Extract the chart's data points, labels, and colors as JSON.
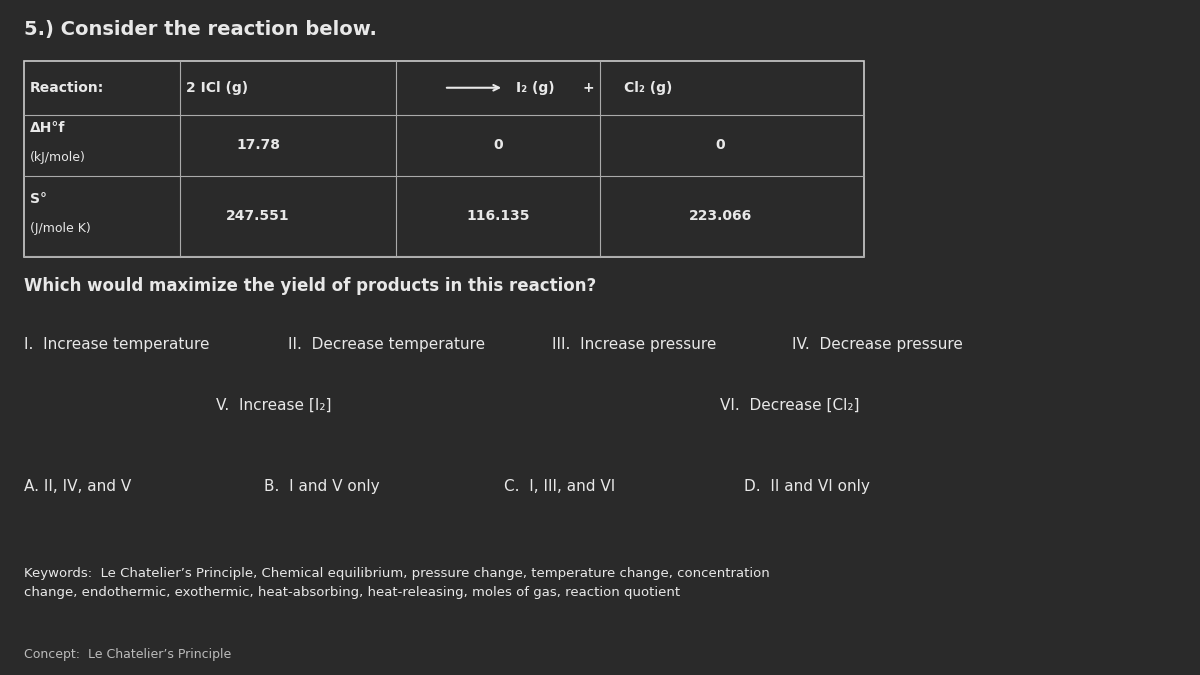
{
  "background_color": "#2a2a2a",
  "text_color": "#e8e8e8",
  "panel_color": "#3a3a3a",
  "title": "5.) Consider the reaction below.",
  "question": "Which would maximize the yield of products in this reaction?",
  "table": {
    "col_labels": [
      "Reaction:",
      "2 ICl (g)",
      "→",
      "I₂ (g)",
      "+",
      "Cl₂ (g)"
    ],
    "row1_label": "ΔH°f\n(kJ/mole)",
    "row1_vals": [
      "17.78",
      "0",
      "0"
    ],
    "row2_label": "S°\n(J/mole K)",
    "row2_vals": [
      "247.551",
      "116.135",
      "223.066"
    ]
  },
  "options_line1": [
    "I.  Increase temperature",
    "II.  Decrease temperature",
    "III.  Increase pressure",
    "IV.  Decrease pressure"
  ],
  "options_line2_left": "V.  Increase [I₂]",
  "options_line2_right": "VI.  Decrease [Cl₂]",
  "answers": [
    "A. II, IV, and V",
    "B.  I and V only",
    "C.  I, III, and VI",
    "D.  II and VI only"
  ],
  "keywords": "Keywords:  Le Chatelier’s Principle, Chemical equilibrium, pressure change, temperature change, concentration\nchange, endothermic, exothermic, heat-absorbing, heat-releasing, moles of gas, reaction quotient",
  "footer": "Concept:  Le Chatelier’s Principle"
}
